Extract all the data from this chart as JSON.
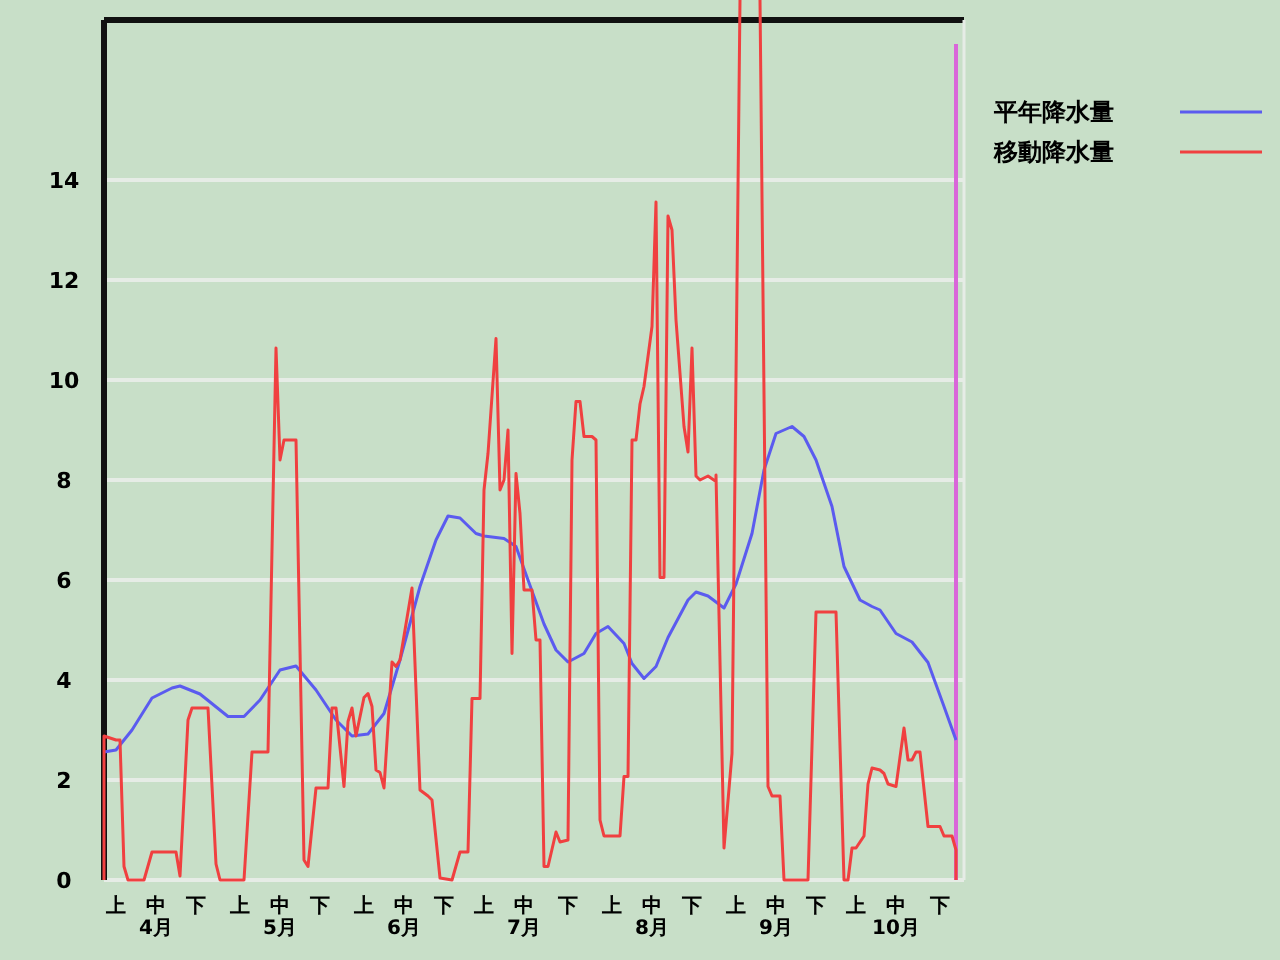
{
  "chart_data": {
    "type": "line",
    "xlim": [
      "--04-01",
      "--11-02"
    ],
    "ylim": [
      0,
      17.2
    ],
    "xticks": [
      {
        "value": "--04-04",
        "label": "上"
      },
      {
        "value": "--04-14",
        "label": "中\n4月"
      },
      {
        "value": "--04-24",
        "label": "下"
      },
      {
        "value": "--05-05",
        "label": "上"
      },
      {
        "value": "--05-15",
        "label": "中\n5月"
      },
      {
        "value": "--05-25",
        "label": "下"
      },
      {
        "value": "--06-05",
        "label": "上"
      },
      {
        "value": "--06-15",
        "label": "中\n6月"
      },
      {
        "value": "--06-25",
        "label": "下"
      },
      {
        "value": "--07-05",
        "label": "上"
      },
      {
        "value": "--07-15",
        "label": "中\n7月"
      },
      {
        "value": "--07-26",
        "label": "下"
      },
      {
        "value": "--08-06",
        "label": "上"
      },
      {
        "value": "--08-16",
        "label": "中\n8月"
      },
      {
        "value": "--08-26",
        "label": "下"
      },
      {
        "value": "--09-06",
        "label": "上"
      },
      {
        "value": "--09-16",
        "label": "中\n9月"
      },
      {
        "value": "--09-26",
        "label": "下"
      },
      {
        "value": "--10-06",
        "label": "上"
      },
      {
        "value": "--10-16",
        "label": "中\n10月"
      },
      {
        "value": "--10-27",
        "label": "下"
      }
    ],
    "yticks": [
      0,
      2,
      4,
      6,
      8,
      10,
      12,
      14
    ],
    "grid": "y",
    "legend": "top right",
    "marker": "none",
    "line_style": "solid",
    "ref_lines": [
      {
        "axis": "x",
        "value": "--10-31",
        "color": "#d966d9"
      }
    ],
    "series": [
      {
        "name": "平年降水量",
        "color": "#5b5bef",
        "x": [
          "--04-01",
          "--04-04",
          "--04-08",
          "--04-13",
          "--04-18",
          "--04-20",
          "--04-25",
          "--05-02",
          "--05-06",
          "--05-10",
          "--05-15",
          "--05-19",
          "--05-24",
          "--05-29",
          "--06-02",
          "--06-06",
          "--06-10",
          "--06-14",
          "--06-19",
          "--06-23",
          "--06-26",
          "--06-29",
          "--07-03",
          "--07-05",
          "--07-10",
          "--07-13",
          "--07-16",
          "--07-20",
          "--07-23",
          "--07-26",
          "--07-30",
          "--08-02",
          "--08-05",
          "--08-09",
          "--08-11",
          "--08-14",
          "--08-17",
          "--08-20",
          "--08-25",
          "--08-27",
          "--08-30",
          "--09-03",
          "--09-06",
          "--09-10",
          "--09-13",
          "--09-16",
          "--09-20",
          "--09-23",
          "--09-26",
          "--09-30",
          "--10-03",
          "--10-07",
          "--10-10",
          "--10-12",
          "--10-16",
          "--10-20",
          "--10-24",
          "--10-28",
          "--10-31"
        ],
        "values": [
          2.56,
          2.6,
          3.0,
          3.64,
          3.84,
          3.88,
          3.72,
          3.27,
          3.27,
          3.6,
          4.2,
          4.28,
          3.8,
          3.2,
          2.88,
          2.92,
          3.33,
          4.4,
          5.87,
          6.8,
          7.28,
          7.24,
          6.93,
          6.88,
          6.83,
          6.67,
          6.0,
          5.12,
          4.6,
          4.36,
          4.53,
          4.93,
          5.07,
          4.73,
          4.33,
          4.03,
          4.27,
          4.85,
          5.6,
          5.76,
          5.68,
          5.44,
          5.92,
          6.93,
          8.2,
          8.93,
          9.07,
          8.87,
          8.4,
          7.47,
          6.27,
          5.6,
          5.47,
          5.4,
          4.93,
          4.76,
          4.35,
          3.47,
          2.8
        ]
      },
      {
        "name": "移動降水量",
        "color": "#f04040",
        "x": [
          "--04-01",
          "--04-01",
          "--04-04",
          "--04-05",
          "--04-06",
          "--04-07",
          "--04-11",
          "--04-13",
          "--04-19",
          "--04-20",
          "--04-22",
          "--04-23",
          "--04-27",
          "--04-29",
          "--04-30",
          "--05-06",
          "--05-08",
          "--05-12",
          "--05-14",
          "--05-15",
          "--05-16",
          "--05-19",
          "--05-21",
          "--05-22",
          "--05-24",
          "--05-27",
          "--05-28",
          "--05-29",
          "--05-31",
          "--06-01",
          "--06-02",
          "--06-03",
          "--06-05",
          "--06-06",
          "--06-07",
          "--06-08",
          "--06-09",
          "--06-10",
          "--06-12",
          "--06-13",
          "--06-14",
          "--06-17",
          "--06-19",
          "--06-21",
          "--06-22",
          "--06-24",
          "--06-27",
          "--06-29",
          "--07-01",
          "--07-02",
          "--07-04",
          "--07-05",
          "--07-06",
          "--07-08",
          "--07-09",
          "--07-10",
          "--07-11",
          "--07-12",
          "--07-13",
          "--07-14",
          "--07-15",
          "--07-17",
          "--07-18",
          "--07-19",
          "--07-20",
          "--07-21",
          "--07-23",
          "--07-24",
          "--07-26",
          "--07-27",
          "--07-28",
          "--07-29",
          "--07-30",
          "--08-01",
          "--08-02",
          "--08-03",
          "--08-04",
          "--08-08",
          "--08-09",
          "--08-10",
          "--08-11",
          "--08-12",
          "--08-13",
          "--08-14",
          "--08-16",
          "--08-17",
          "--08-18",
          "--08-19",
          "--08-20",
          "--08-21",
          "--08-22",
          "--08-24",
          "--08-25",
          "--08-26",
          "--08-27",
          "--08-28",
          "--08-30",
          "--09-01",
          "--09-01",
          "--09-03",
          "--09-05",
          "--09-07",
          "--09-12",
          "--09-14",
          "--09-15",
          "--09-17",
          "--09-18",
          "--09-24",
          "--09-26",
          "--10-01",
          "--10-03",
          "--10-04",
          "--10-05",
          "--10-06",
          "--10-08",
          "--10-09",
          "--10-10",
          "--10-12",
          "--10-13",
          "--10-14",
          "--10-16",
          "--10-18",
          "--10-19",
          "--10-20",
          "--10-21",
          "--10-22",
          "--10-24",
          "--10-27",
          "--10-28",
          "--10-30",
          "--10-31",
          "--10-31"
        ],
        "values": [
          0,
          2.88,
          2.8,
          2.8,
          0.27,
          0,
          0,
          0.56,
          0.56,
          0.08,
          3.2,
          3.44,
          3.44,
          0.32,
          0,
          0,
          2.56,
          2.56,
          10.64,
          8.4,
          8.8,
          8.8,
          0.4,
          0.27,
          1.84,
          1.84,
          3.44,
          3.44,
          1.87,
          3.17,
          3.44,
          2.88,
          3.65,
          3.73,
          3.47,
          2.2,
          2.15,
          1.84,
          4.36,
          4.27,
          4.4,
          5.84,
          1.8,
          1.68,
          1.6,
          0.04,
          0,
          0.56,
          0.56,
          3.63,
          3.63,
          7.8,
          8.53,
          10.83,
          7.8,
          8.0,
          9.0,
          4.53,
          8.13,
          7.33,
          5.8,
          5.8,
          4.8,
          4.8,
          0.27,
          0.27,
          0.96,
          0.76,
          0.8,
          8.4,
          9.57,
          9.57,
          8.87,
          8.87,
          8.8,
          1.2,
          0.88,
          0.88,
          2.07,
          2.07,
          8.8,
          8.8,
          9.52,
          9.87,
          11.07,
          13.56,
          6.05,
          6.05,
          13.28,
          13.0,
          11.2,
          9.07,
          8.56,
          10.64,
          8.08,
          8.0,
          8.08,
          7.97,
          8.1,
          0.64,
          2.53,
          null,
          null,
          1.87,
          1.68,
          1.68,
          0,
          0,
          5.36,
          5.36,
          0,
          0,
          0.64,
          0.64,
          0.88,
          1.92,
          2.24,
          2.2,
          2.13,
          1.92,
          1.87,
          3.04,
          2.4,
          2.4,
          2.56,
          2.56,
          1.07,
          1.07,
          0.88,
          0.88,
          0.6,
          0
        ]
      }
    ]
  }
}
